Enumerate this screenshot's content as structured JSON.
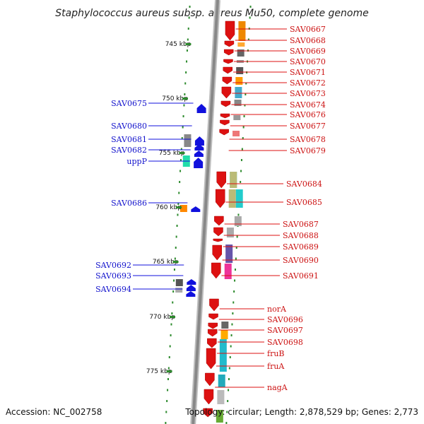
{
  "title": "Staphylococcus aureus subsp. aureus Mu50, complete genome",
  "footer": {
    "accession": "Accession: NC_002758",
    "topology": "Topology: circular; Length: 2,878,529 bp; Genes: 2,773"
  },
  "scale_labels": [
    "745 kbp",
    "750 kbp",
    "755 kbp",
    "760 kbp",
    "765 kbp",
    "770 kbp",
    "775 kbp"
  ],
  "colors": {
    "forward_strand": "#dd1111",
    "reverse_strand": "#1111dd",
    "backbone": "#888888",
    "tick": "#2e8b2e"
  },
  "labels_forward": [
    "SAV0667",
    "SAV0668",
    "SAV0669",
    "SAV0670",
    "SAV0671",
    "SAV0672",
    "SAV0673",
    "SAV0674",
    "SAV0676",
    "SAV0677",
    "SAV0678",
    "SAV0679",
    "SAV0684",
    "SAV0685",
    "SAV0687",
    "SAV0688",
    "SAV0689",
    "SAV0690",
    "SAV0691",
    "norA",
    "SAV0696",
    "SAV0697",
    "SAV0698",
    "fruB",
    "fruA",
    "nagA"
  ],
  "labels_reverse": [
    "SAV0675",
    "SAV0680",
    "SAV0681",
    "SAV0682",
    "uppP",
    "SAV0686",
    "SAV0692",
    "SAV0693",
    "SAV0694"
  ]
}
